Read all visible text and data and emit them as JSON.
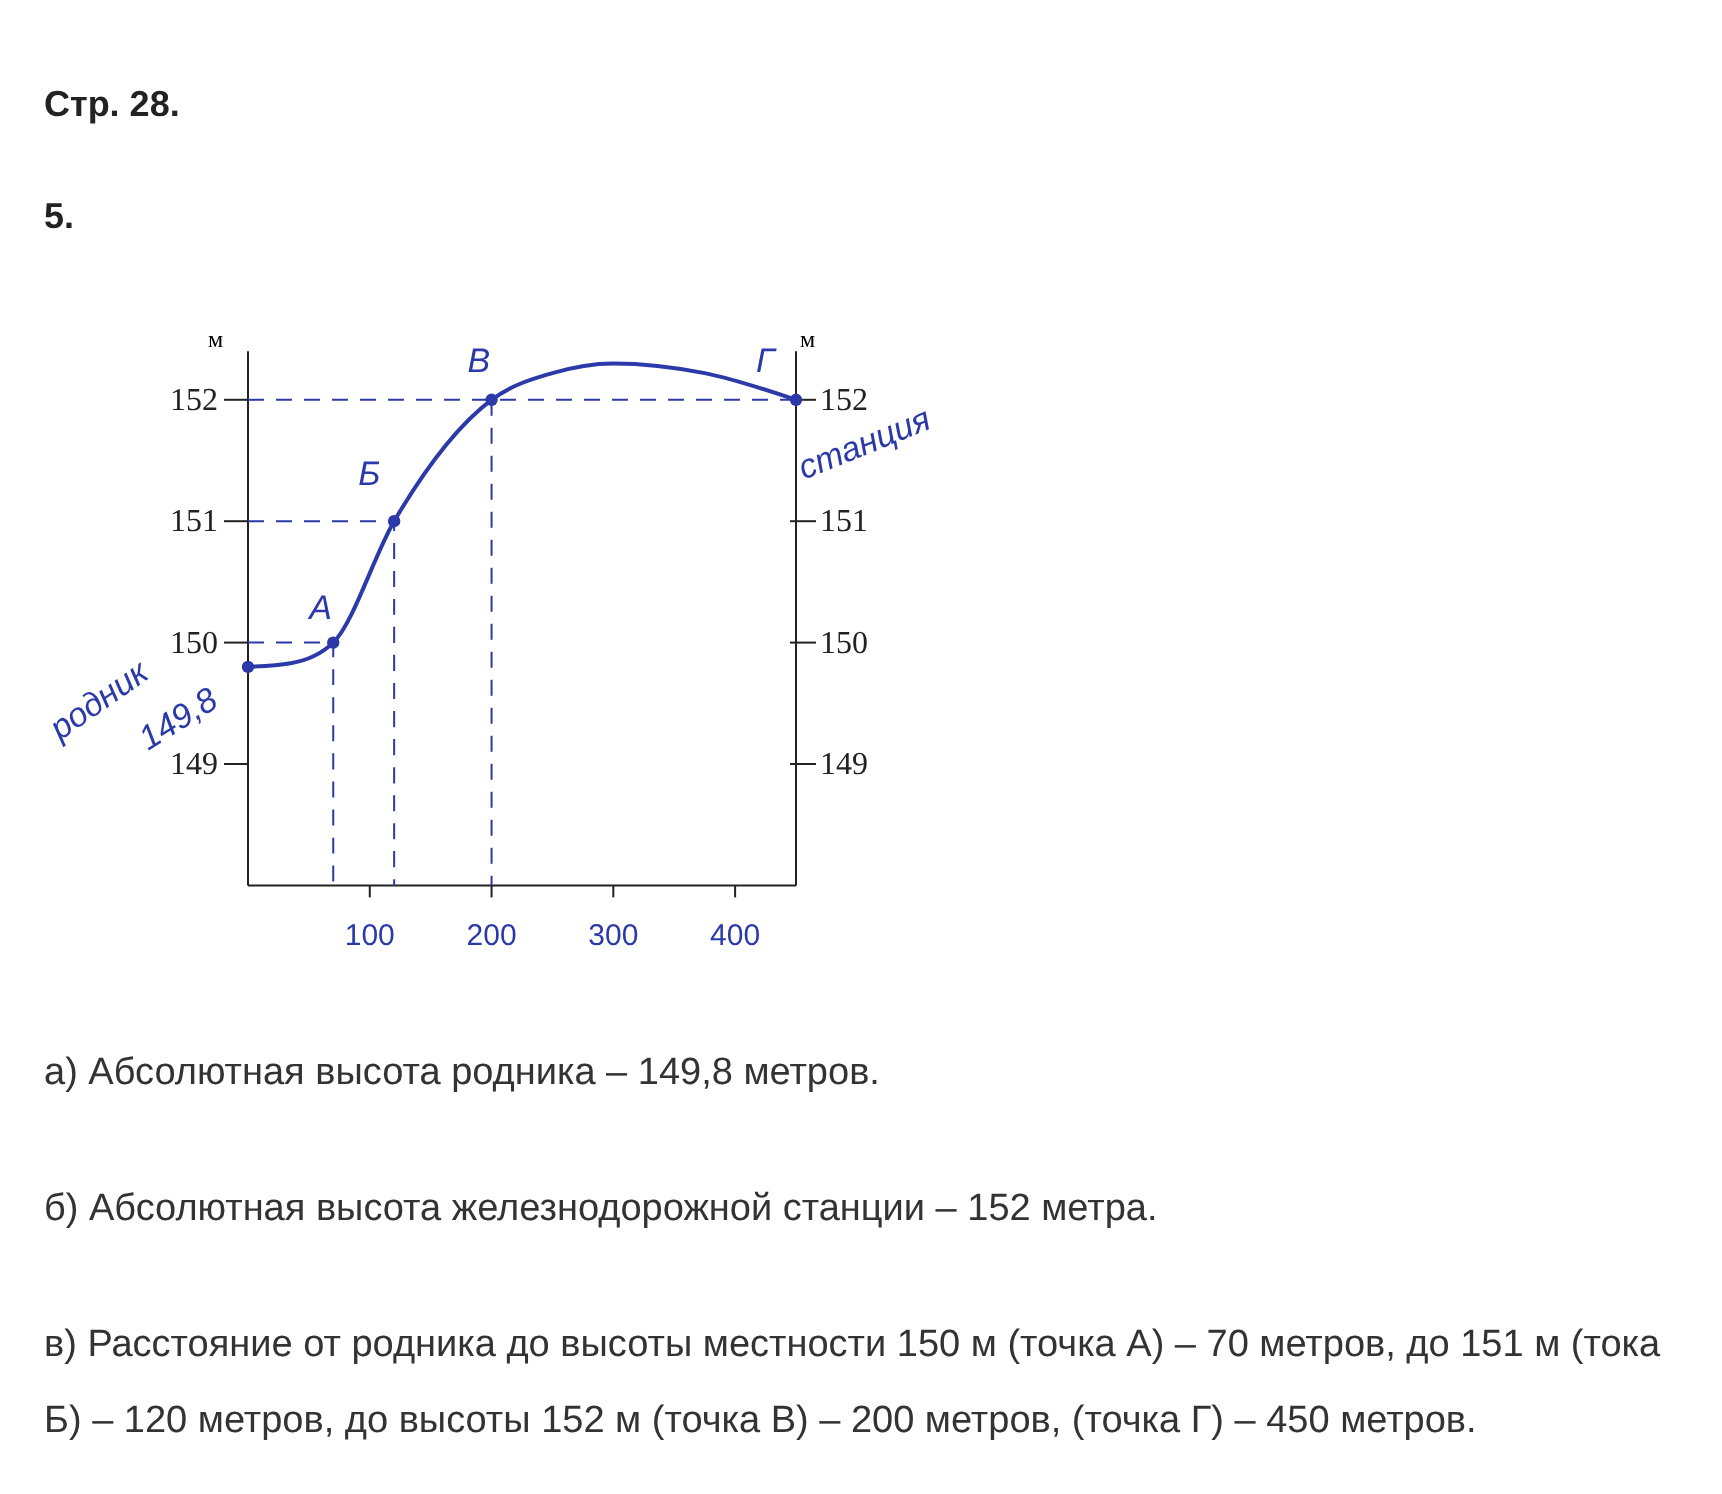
{
  "chart_data": {
    "type": "line",
    "title": "Стр. 28.",
    "subtitle": "5.",
    "ylabel": "м",
    "y2label": "м",
    "xlim": [
      0,
      450
    ],
    "xticks": [
      100,
      200,
      300,
      400
    ],
    "ylim": [
      148,
      152.4
    ],
    "yticks": [
      149,
      150,
      151,
      152
    ],
    "y2lim": [
      148,
      152.4
    ],
    "y2ticks": [
      149,
      150,
      151,
      152
    ],
    "grid": false,
    "series": [
      {
        "color": "#2b3aa8",
        "line_style": "dashed",
        "marker": "none",
        "x": [
          0,
          70,
          70
        ],
        "values": [
          150,
          150,
          148
        ]
      },
      {
        "color": "#2b3aa8",
        "line_style": "dashed",
        "marker": "none",
        "x": [
          0,
          120,
          120
        ],
        "values": [
          151,
          151,
          148
        ]
      },
      {
        "color": "#2b3aa8",
        "line_style": "dashed",
        "marker": "none",
        "x": [
          0,
          450
        ],
        "values": [
          152,
          152
        ]
      },
      {
        "color": "#2b3aa8",
        "line_style": "dashed",
        "marker": "none",
        "x": [
          200,
          200
        ],
        "values": [
          152,
          148
        ]
      },
      {
        "color": "#2b3aa8",
        "line_style": "solid",
        "marker": "none",
        "x": [
          0,
          35,
          70,
          120,
          200,
          250,
          300,
          375,
          450
        ],
        "values": [
          149.8,
          149.83,
          150,
          151,
          152,
          152.22,
          152.3,
          152.22,
          152
        ]
      },
      {
        "type": "scatter",
        "color": "#2b3aa8",
        "marker": "circle",
        "x": [
          0,
          70,
          120,
          200,
          450
        ],
        "values": [
          149.8,
          150,
          151,
          152,
          152
        ]
      }
    ],
    "annotations": [
      {
        "text": "родник",
        "x": 0,
        "y": 149.8
      },
      {
        "text": "149,8",
        "x": 0,
        "y": 149.8
      },
      {
        "text": "А",
        "x": 70,
        "y": 150
      },
      {
        "text": "Б",
        "x": 120,
        "y": 151
      },
      {
        "text": "В",
        "x": 200,
        "y": 152
      },
      {
        "text": "Г",
        "x": 450,
        "y": 152
      },
      {
        "text": "станция",
        "x": 450,
        "y": 152
      },
      "а) Абсолютная высота родника – 149,8 метров.",
      "б) Абсолютная высота железнодорожной станции – 152 метра.",
      "в) Расстояние от родника до высоты местности 150 м (точка А) – 70 метров, до 151 м (тока Б) – 120 метров, до высоты 152 м (точка В) – 200 метров, (точка Г) – 450 метров."
    ]
  }
}
